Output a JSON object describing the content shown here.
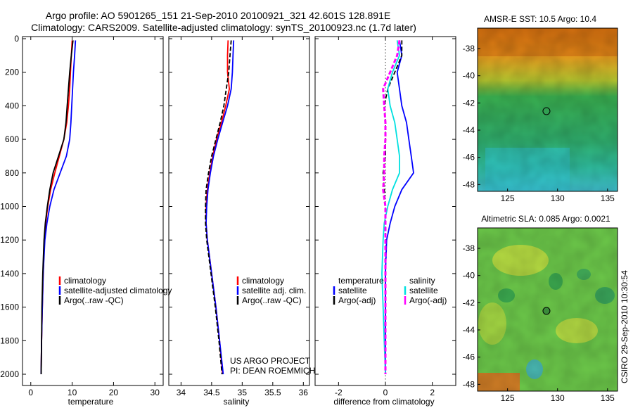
{
  "header": {
    "line1": "Argo profile: AO 5901265_151 21-Sep-2010 20100921_321 42.601S 128.891E",
    "line2": "Climatology: CARS2009. Satellite-adjusted climatology: synTS_20100923.nc (1.7d later)"
  },
  "side_label": "CSIRO 29-Sep-2010 10:30:54",
  "credit": {
    "line1": "US ARGO PROJECT",
    "line2": "PI: DEAN ROEMMICH"
  },
  "colors": {
    "climatology": "#ff0000",
    "satellite": "#0000ff",
    "argo": "#000000",
    "sal_satellite": "#00e0e0",
    "sal_argo": "#ff00ff"
  },
  "chart_data": [
    {
      "type": "line",
      "id": "temperature",
      "xlabel": "temperature",
      "ylabel": "",
      "xlim": [
        -2,
        32
      ],
      "ylim": [
        2050,
        0
      ],
      "xticks": [
        0,
        10,
        20,
        30
      ],
      "yticks": [
        0,
        200,
        400,
        600,
        800,
        1000,
        1200,
        1400,
        1600,
        1800,
        2000
      ],
      "series": [
        {
          "name": "climatology",
          "color": "#ff0000",
          "depth": [
            10,
            100,
            200,
            300,
            400,
            500,
            600,
            700,
            800,
            900,
            1000,
            1100,
            1200,
            1400,
            1600,
            1800,
            2000
          ],
          "values": [
            10.0,
            9.8,
            9.6,
            9.4,
            9.1,
            8.7,
            8.0,
            6.9,
            5.8,
            4.8,
            4.1,
            3.6,
            3.3,
            3.0,
            2.8,
            2.6,
            2.5
          ]
        },
        {
          "name": "satellite-adjusted climatology",
          "color": "#0000ff",
          "depth": [
            10,
            100,
            200,
            300,
            400,
            500,
            600,
            700,
            800,
            900,
            1000,
            1100,
            1200,
            1400,
            1600,
            1800,
            2000
          ],
          "values": [
            10.8,
            10.6,
            10.3,
            10.1,
            9.9,
            9.7,
            9.4,
            8.6,
            7.1,
            5.6,
            4.6,
            3.9,
            3.4,
            3.0,
            2.8,
            2.6,
            2.5
          ]
        },
        {
          "name": "Argo(..raw -QC)",
          "color": "#000000",
          "depth": [
            10,
            100,
            200,
            300,
            400,
            500,
            600,
            700,
            800,
            900,
            1000,
            1100,
            1200,
            1400,
            1600,
            1800,
            2000
          ],
          "values": [
            10.2,
            9.8,
            9.4,
            9.1,
            8.8,
            8.5,
            8.0,
            6.7,
            5.4,
            4.6,
            4.0,
            3.5,
            3.2,
            2.9,
            2.7,
            2.6,
            2.5
          ]
        }
      ],
      "legend": [
        "climatology",
        "satellite-adjusted climatology",
        "Argo(..raw -QC)"
      ]
    },
    {
      "type": "line",
      "id": "salinity",
      "xlabel": "salinity",
      "ylabel": "",
      "xlim": [
        33.8,
        36.1
      ],
      "ylim": [
        2050,
        0
      ],
      "xticks": [
        34,
        34.5,
        35,
        35.5,
        36
      ],
      "series": [
        {
          "name": "climatology",
          "color": "#ff0000",
          "depth": [
            10,
            100,
            200,
            300,
            400,
            500,
            600,
            700,
            800,
            900,
            1000,
            1100,
            1200,
            1400,
            1600,
            1800,
            2000
          ],
          "values": [
            34.77,
            34.76,
            34.76,
            34.79,
            34.73,
            34.66,
            34.58,
            34.52,
            34.47,
            34.43,
            34.41,
            34.41,
            34.43,
            34.5,
            34.57,
            34.63,
            34.68
          ]
        },
        {
          "name": "satellite adj. clim.",
          "color": "#0000ff",
          "depth": [
            10,
            100,
            200,
            300,
            400,
            500,
            600,
            700,
            800,
            900,
            1000,
            1100,
            1200,
            1400,
            1600,
            1800,
            2000
          ],
          "values": [
            34.86,
            34.85,
            34.84,
            34.82,
            34.76,
            34.68,
            34.6,
            34.53,
            34.48,
            34.44,
            34.42,
            34.41,
            34.43,
            34.5,
            34.57,
            34.63,
            34.69
          ]
        },
        {
          "name": "Argo(..raw -QC)",
          "color": "#000000",
          "depth": [
            10,
            100,
            200,
            300,
            400,
            500,
            600,
            700,
            800,
            900,
            1000,
            1100,
            1200,
            1400,
            1600,
            1800,
            2000
          ],
          "values": [
            34.82,
            34.8,
            34.78,
            34.74,
            34.7,
            34.64,
            34.57,
            34.5,
            34.45,
            34.41,
            34.4,
            34.4,
            34.42,
            34.49,
            34.56,
            34.62,
            34.67
          ]
        }
      ],
      "legend": [
        "climatology",
        "satellite adj. clim.",
        "Argo(..raw -QC)"
      ]
    },
    {
      "type": "line",
      "id": "difference",
      "xlabel": "difference from climatology",
      "ylabel": "",
      "xlim": [
        -3,
        3
      ],
      "ylim": [
        2050,
        0
      ],
      "xticks": [
        -2,
        0,
        2
      ],
      "series": [
        {
          "name": "temperature satellite",
          "color": "#0000ff",
          "depth": [
            10,
            100,
            200,
            300,
            400,
            500,
            600,
            700,
            800,
            900,
            1000,
            1100,
            1200,
            1400,
            1600,
            1800,
            2000
          ],
          "values": [
            0.6,
            0.7,
            0.5,
            0.6,
            0.7,
            0.9,
            1.0,
            1.1,
            1.2,
            0.7,
            0.4,
            0.2,
            0.05,
            0.0,
            0.0,
            0.0,
            0.0
          ]
        },
        {
          "name": "temperature Argo(-adj)",
          "color": "#000000",
          "depth": [
            10,
            100,
            200,
            300,
            400,
            500,
            600,
            700,
            800,
            900,
            1000,
            1100,
            1200,
            1400,
            1600,
            1800,
            2000
          ],
          "values": [
            0.7,
            0.7,
            0.4,
            0.1,
            -0.05,
            0.0,
            0.0,
            0.0,
            -0.1,
            -0.05,
            0.0,
            0.0,
            0.0,
            0.0,
            0.0,
            0.0,
            0.0
          ]
        },
        {
          "name": "salinity satellite",
          "color": "#00e0e0",
          "depth": [
            10,
            100,
            200,
            300,
            400,
            500,
            600,
            700,
            800,
            900,
            1000,
            1100,
            1200,
            1400,
            1600,
            1800,
            2000
          ],
          "values": [
            0.5,
            0.6,
            0.3,
            0.1,
            0.2,
            0.4,
            0.5,
            0.6,
            0.6,
            0.3,
            0.1,
            -0.05,
            -0.1,
            -0.15,
            -0.1,
            -0.05,
            0.0
          ]
        },
        {
          "name": "salinity Argo(-adj)",
          "color": "#ff00ff",
          "depth": [
            10,
            100,
            200,
            300,
            400,
            500,
            600,
            700,
            800,
            900,
            1000,
            1100,
            1200,
            1400,
            1600,
            1800,
            2000
          ],
          "values": [
            0.6,
            0.5,
            0.2,
            -0.1,
            -0.05,
            0.0,
            0.0,
            -0.05,
            -0.05,
            -0.1,
            0.0,
            0.0,
            0.0,
            0.0,
            0.0,
            0.0,
            0.0
          ]
        }
      ],
      "legend_titles": [
        "temperature",
        "salinity"
      ],
      "legend": [
        "satellite",
        "Argo(-adj)",
        "satellite",
        "Argo(-adj)"
      ]
    },
    {
      "type": "heatmap",
      "id": "sst-map",
      "title": "AMSR-E SST: 10.5 Argo: 10.4",
      "xlim": [
        122,
        136
      ],
      "ylim": [
        -48.5,
        -36.5
      ],
      "xticks": [
        125,
        130,
        135
      ],
      "yticks": [
        -38,
        -40,
        -42,
        -44,
        -46,
        -48
      ],
      "marker": {
        "lon": 128.891,
        "lat": -42.601
      }
    },
    {
      "type": "heatmap",
      "id": "sla-map",
      "title": "Altimetric SLA: 0.085 Argo: 0.0021",
      "xlim": [
        122,
        136
      ],
      "ylim": [
        -48.5,
        -36.5
      ],
      "xticks": [
        125,
        130,
        135
      ],
      "yticks": [
        -38,
        -40,
        -42,
        -44,
        -46,
        -48
      ],
      "marker": {
        "lon": 128.891,
        "lat": -42.601
      }
    }
  ]
}
